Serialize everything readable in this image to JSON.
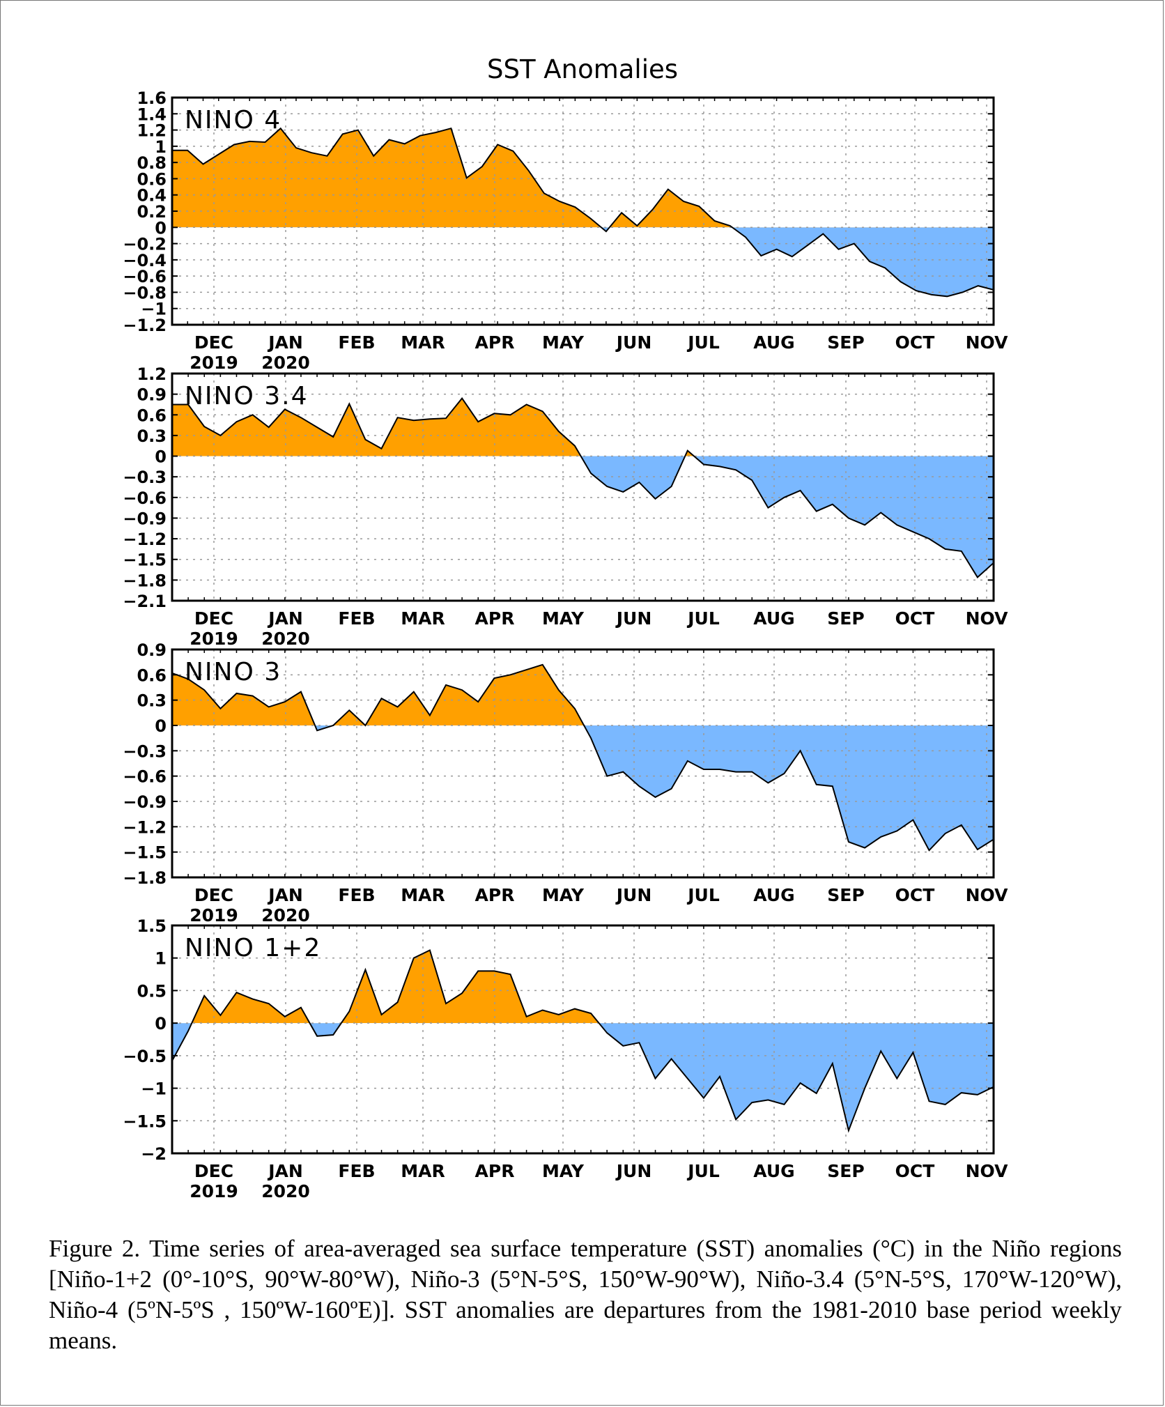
{
  "title": "SST Anomalies",
  "caption": "Figure 2. Time series of area-averaged sea surface temperature (SST) anomalies (°C) in the Niño regions [Niño-1+2 (0°-10°S, 90°W-80°W), Niño-3 (5°N-5°S, 150°W-90°W), Niño-3.4 (5°N-5°S, 170°W-120°W), Niño-4 (5ºN-5ºS , 150ºW-160ºE)]. SST anomalies are departures from the 1981-2010 base period weekly means.",
  "colors": {
    "positive": "#ffa000",
    "negative": "#7ab8ff",
    "line": "#000000",
    "grid": "#999999"
  },
  "chart_data": [
    {
      "type": "area",
      "title": "NINO 4",
      "x_month_labels": [
        "DEC",
        "JAN",
        "FEB",
        "MAR",
        "APR",
        "MAY",
        "JUN",
        "JUL",
        "AUG",
        "SEP",
        "OCT",
        "NOV"
      ],
      "x_year_labels": {
        "DEC": "2019",
        "JAN": "2020"
      },
      "ylim": [
        -1.2,
        1.6
      ],
      "yticks": [
        "1.6",
        "1.4",
        "1.2",
        "1",
        "0.8",
        "0.6",
        "0.4",
        "0.2",
        "0",
        "-0.2",
        "-0.4",
        "-0.6",
        "-0.8",
        "-1",
        "-1.2"
      ],
      "values": [
        0.95,
        0.95,
        0.78,
        0.9,
        1.02,
        1.06,
        1.05,
        1.22,
        0.98,
        0.92,
        0.88,
        1.15,
        1.2,
        0.88,
        1.08,
        1.03,
        1.13,
        1.17,
        1.22,
        0.61,
        0.75,
        1.02,
        0.94,
        0.7,
        0.42,
        0.32,
        0.25,
        0.11,
        -0.05,
        0.18,
        0.02,
        0.22,
        0.47,
        0.32,
        0.26,
        0.08,
        0.02,
        -0.12,
        -0.35,
        -0.27,
        -0.36,
        -0.22,
        -0.08,
        -0.27,
        -0.2,
        -0.42,
        -0.5,
        -0.67,
        -0.78,
        -0.83,
        -0.85,
        -0.8,
        -0.72,
        -0.77
      ]
    },
    {
      "type": "area",
      "title": "NINO 3.4",
      "x_month_labels": [
        "DEC",
        "JAN",
        "FEB",
        "MAR",
        "APR",
        "MAY",
        "JUN",
        "JUL",
        "AUG",
        "SEP",
        "OCT",
        "NOV"
      ],
      "x_year_labels": {
        "DEC": "2019",
        "JAN": "2020"
      },
      "ylim": [
        -2.1,
        1.2
      ],
      "yticks": [
        "1.2",
        "0.9",
        "0.6",
        "0.3",
        "0",
        "-0.3",
        "-0.6",
        "-0.9",
        "-1.2",
        "-1.5",
        "-1.8",
        "-2.1"
      ],
      "values": [
        0.75,
        0.75,
        0.43,
        0.3,
        0.5,
        0.6,
        0.42,
        0.68,
        0.56,
        0.42,
        0.28,
        0.76,
        0.24,
        0.11,
        0.56,
        0.52,
        0.54,
        0.55,
        0.84,
        0.5,
        0.62,
        0.6,
        0.75,
        0.65,
        0.36,
        0.15,
        -0.25,
        -0.44,
        -0.52,
        -0.38,
        -0.62,
        -0.44,
        0.08,
        -0.12,
        -0.15,
        -0.2,
        -0.35,
        -0.75,
        -0.6,
        -0.5,
        -0.8,
        -0.7,
        -0.9,
        -1.0,
        -0.82,
        -1.0,
        -1.1,
        -1.2,
        -1.35,
        -1.38,
        -1.76,
        -1.55
      ]
    },
    {
      "type": "area",
      "title": "NINO 3",
      "x_month_labels": [
        "DEC",
        "JAN",
        "FEB",
        "MAR",
        "APR",
        "MAY",
        "JUN",
        "JUL",
        "AUG",
        "SEP",
        "OCT",
        "NOV"
      ],
      "x_year_labels": {
        "DEC": "2019",
        "JAN": "2020"
      },
      "ylim": [
        -1.8,
        0.9
      ],
      "yticks": [
        "0.9",
        "0.6",
        "0.3",
        "0",
        "-0.3",
        "-0.6",
        "-0.9",
        "-1.2",
        "-1.5",
        "-1.8"
      ],
      "values": [
        0.62,
        0.55,
        0.42,
        0.2,
        0.38,
        0.35,
        0.22,
        0.28,
        0.4,
        -0.06,
        0.0,
        0.18,
        0.0,
        0.32,
        0.22,
        0.4,
        0.12,
        0.48,
        0.42,
        0.28,
        0.56,
        0.6,
        0.66,
        0.72,
        0.42,
        0.2,
        -0.15,
        -0.6,
        -0.55,
        -0.72,
        -0.85,
        -0.75,
        -0.42,
        -0.52,
        -0.52,
        -0.55,
        -0.55,
        -0.68,
        -0.57,
        -0.3,
        -0.7,
        -0.72,
        -1.38,
        -1.45,
        -1.32,
        -1.25,
        -1.12,
        -1.48,
        -1.28,
        -1.18,
        -1.47,
        -1.35
      ]
    },
    {
      "type": "area",
      "title": "NINO 1+2",
      "x_month_labels": [
        "DEC",
        "JAN",
        "FEB",
        "MAR",
        "APR",
        "MAY",
        "JUN",
        "JUL",
        "AUG",
        "SEP",
        "OCT",
        "NOV"
      ],
      "x_year_labels": {
        "DEC": "2019",
        "JAN": "2020"
      },
      "ylim": [
        -2,
        1.5
      ],
      "yticks": [
        "1.5",
        "1",
        "0.5",
        "0",
        "-0.5",
        "-1",
        "-1.5",
        "-2"
      ],
      "values": [
        -0.58,
        -0.12,
        0.42,
        0.12,
        0.47,
        0.37,
        0.3,
        0.1,
        0.24,
        -0.2,
        -0.18,
        0.18,
        0.82,
        0.13,
        0.32,
        1.0,
        1.12,
        0.3,
        0.46,
        0.8,
        0.8,
        0.75,
        0.1,
        0.2,
        0.13,
        0.22,
        0.15,
        -0.15,
        -0.35,
        -0.3,
        -0.85,
        -0.55,
        -0.85,
        -1.15,
        -0.82,
        -1.48,
        -1.22,
        -1.18,
        -1.25,
        -0.92,
        -1.08,
        -0.62,
        -1.65,
        -1.0,
        -0.43,
        -0.85,
        -0.45,
        -1.2,
        -1.25,
        -1.07,
        -1.1,
        -0.98
      ]
    }
  ]
}
